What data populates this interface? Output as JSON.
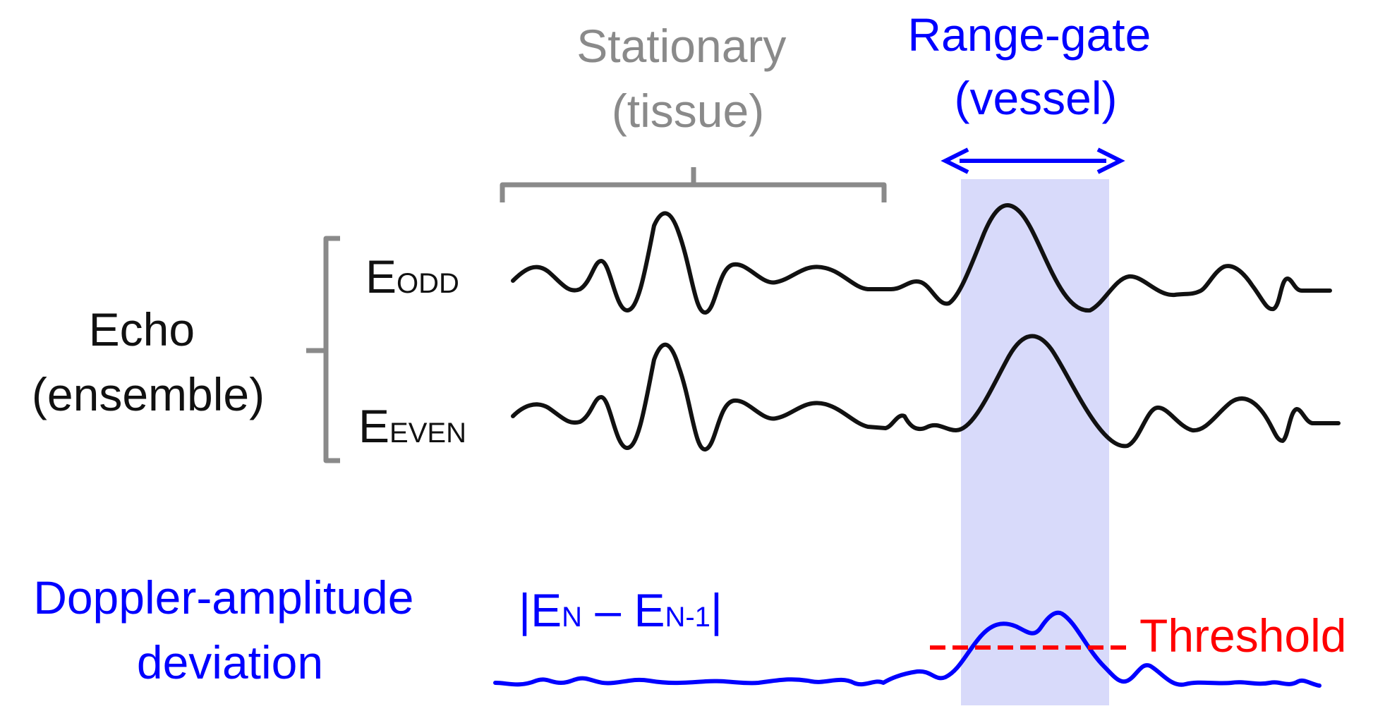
{
  "stationary": {
    "line1": "Stationary",
    "line2": "(tissue)"
  },
  "range_gate": {
    "line1": "Range-gate",
    "line2": "(vessel)"
  },
  "echo": {
    "line1": "Echo",
    "line2": "(ensemble)"
  },
  "signals": {
    "odd": {
      "letter": "E",
      "sub": "ODD"
    },
    "even": {
      "letter": "E",
      "sub": "EVEN"
    }
  },
  "doppler": {
    "line1": "Doppler-amplitude",
    "line2": "deviation"
  },
  "formula": {
    "open": "|E",
    "sub1": "N",
    "mid": " – E",
    "sub2": "N-1",
    "close": "|"
  },
  "threshold": "Threshold",
  "colors": {
    "gray": "#8a8a8a",
    "blue": "#0000ff",
    "red": "#ff0000",
    "black": "#111111",
    "gate_fill": "#d8dafa"
  }
}
